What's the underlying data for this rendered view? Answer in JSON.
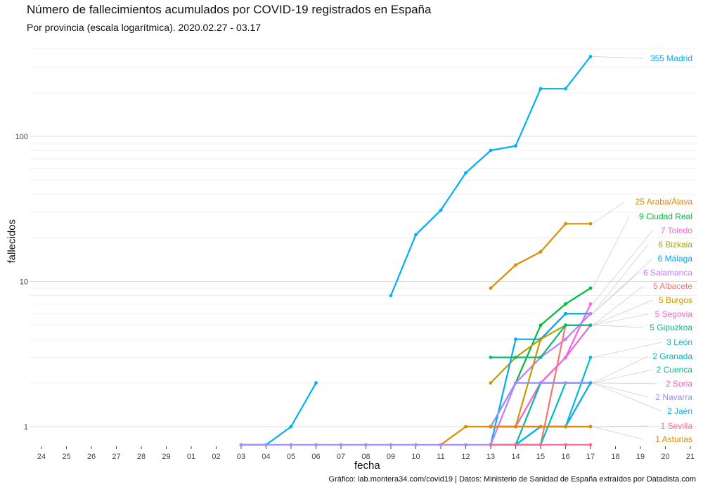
{
  "title": "Número de fallecimientos acumulados por COVID-19 registrados en España",
  "subtitle": "Por provincia (escala logarítmica). 2020.02.27 - 03.17",
  "caption": "Gráfico: lab.montera34.com/covid19 | Datos: Ministerio de Sanidad de España extraídos por Datadista.com",
  "chart_data": {
    "type": "line",
    "title": "Número de fallecimientos acumulados por COVID-19 registrados en España",
    "subtitle": "Por provincia (escala logarítmica). 2020.02.27 - 03.17",
    "xlabel": "fecha",
    "ylabel": "fallecidos",
    "y_scale": "log",
    "ylim": [
      0.75,
      420
    ],
    "y_ticks": [
      1,
      10,
      100
    ],
    "y_tick_labels": [
      "1",
      "10",
      "100"
    ],
    "x_ticks": [
      "24",
      "25",
      "26",
      "27",
      "28",
      "29",
      "01",
      "02",
      "03",
      "04",
      "05",
      "06",
      "07",
      "08",
      "09",
      "10",
      "11",
      "12",
      "13",
      "14",
      "15",
      "16",
      "17",
      "18",
      "19",
      "20",
      "21"
    ],
    "grid": true,
    "legend": "direct labels at right",
    "series": [
      {
        "name": "Madrid",
        "color": "#00b0f6",
        "label": "355 Madrid",
        "x": [
          "03",
          "04",
          "05",
          "06"
        ],
        "y": [
          0.75,
          0.75,
          1,
          2
        ],
        "x2": [
          "09",
          "10",
          "11",
          "12",
          "13",
          "14",
          "15",
          "16",
          "17"
        ],
        "y2": [
          8,
          21,
          31,
          56,
          80,
          86,
          213,
          213,
          355
        ]
      },
      {
        "name": "Araba/Álava",
        "color": "#e08b00",
        "label": "25 Araba/Álava",
        "x": [
          "13",
          "14",
          "15",
          "16",
          "17"
        ],
        "y": [
          9,
          13,
          16,
          25,
          25
        ]
      },
      {
        "name": "Ciudad Real",
        "color": "#00ba38",
        "label": "9 Ciudad Real",
        "x": [
          "13",
          "14",
          "15",
          "16",
          "17"
        ],
        "y": [
          1,
          2,
          5,
          7,
          9
        ]
      },
      {
        "name": "Toledo",
        "color": "#f564e3",
        "label": "7 Toledo",
        "x": [
          "13",
          "14",
          "15",
          "16",
          "17"
        ],
        "y": [
          1,
          1,
          2,
          3,
          7
        ]
      },
      {
        "name": "Bizkaia",
        "color": "#b79f00",
        "label": "6 Bizkaia",
        "x": [
          "13",
          "14",
          "15",
          "16",
          "17"
        ],
        "y": [
          2,
          3,
          4,
          6,
          6
        ]
      },
      {
        "name": "Málaga",
        "color": "#00a9ff",
        "label": "6 Málaga",
        "x": [
          "13",
          "14",
          "15",
          "16",
          "17"
        ],
        "y": [
          0.75,
          4,
          4,
          6,
          6
        ]
      },
      {
        "name": "Salamanca",
        "color": "#c77cff",
        "label": "6 Salamanca",
        "x": [
          "13",
          "14",
          "15",
          "16",
          "17"
        ],
        "y": [
          0.75,
          2,
          3,
          4,
          6
        ]
      },
      {
        "name": "Albacete",
        "color": "#f8766d",
        "label": "5 Albacete",
        "x": [
          "13",
          "14",
          "15",
          "16",
          "17"
        ],
        "y": [
          0.75,
          0.75,
          0.75,
          5,
          5
        ]
      },
      {
        "name": "Burgos",
        "color": "#c49a00",
        "label": "5 Burgos",
        "x": [
          "13",
          "14",
          "15",
          "16",
          "17"
        ],
        "y": [
          1,
          1,
          4,
          5,
          5
        ]
      },
      {
        "name": "Segovia",
        "color": "#fb61d7",
        "label": "5 Segovia",
        "x": [
          "13",
          "14",
          "15",
          "16",
          "17"
        ],
        "y": [
          1,
          1,
          2,
          3,
          5
        ]
      },
      {
        "name": "Gipuzkoa",
        "color": "#00bf7d",
        "label": "5 Gipuzkoa",
        "x": [
          "13",
          "14",
          "15",
          "16",
          "17"
        ],
        "y": [
          3,
          3,
          3,
          5,
          5
        ]
      },
      {
        "name": "León",
        "color": "#00bcd8",
        "label": "3 León",
        "x": [
          "13",
          "14",
          "15",
          "16",
          "17"
        ],
        "y": [
          0.75,
          0.75,
          1,
          1,
          3
        ]
      },
      {
        "name": "Granada",
        "color": "#00bfc4",
        "label": "2 Granada",
        "x": [
          "13",
          "14",
          "15",
          "16",
          "17"
        ],
        "y": [
          0.75,
          0.75,
          0.75,
          2,
          2
        ]
      },
      {
        "name": "Cuenca",
        "color": "#00c08b",
        "label": "2 Cuenca",
        "x": [
          "13",
          "14",
          "15",
          "16",
          "17"
        ],
        "y": [
          0.75,
          0.75,
          2,
          2,
          2
        ]
      },
      {
        "name": "Soria",
        "color": "#ff62bc",
        "label": "2 Soria",
        "x": [
          "13",
          "14",
          "15",
          "16",
          "17"
        ],
        "y": [
          1,
          1,
          1,
          1,
          2
        ]
      },
      {
        "name": "Navarra",
        "color": "#9590ff",
        "label": "2 Navarra",
        "x": [
          "13",
          "14",
          "15",
          "16",
          "17"
        ],
        "y": [
          1,
          2,
          2,
          2,
          2
        ]
      },
      {
        "name": "Jaén",
        "color": "#00b4f0",
        "label": "2 Jaén",
        "x": [
          "13",
          "14",
          "15",
          "16",
          "17"
        ],
        "y": [
          0.75,
          0.75,
          1,
          1,
          2
        ]
      },
      {
        "name": "Sevilla",
        "color": "#ff6c91",
        "label": "1 Sevilla",
        "x": [
          "13",
          "14",
          "15",
          "16",
          "17"
        ],
        "y": [
          1,
          1,
          1,
          1,
          1
        ]
      },
      {
        "name": "Asturias",
        "color": "#e38900",
        "label": "1 Asturias",
        "x": [
          "11",
          "12",
          "13",
          "14",
          "15",
          "16",
          "17"
        ],
        "y": [
          0.75,
          1,
          1,
          1,
          1,
          1,
          1
        ]
      },
      {
        "name": "",
        "color": "#a58aff",
        "x": [
          "03",
          "04",
          "05",
          "06",
          "07",
          "08",
          "09",
          "10",
          "11",
          "12",
          "13"
        ],
        "y": [
          0.75,
          0.75,
          0.75,
          0.75,
          0.75,
          0.75,
          0.75,
          0.75,
          0.75,
          0.75,
          0.75
        ]
      },
      {
        "name": "",
        "color": "#ff6699",
        "x": [
          "13",
          "14",
          "15",
          "16",
          "17"
        ],
        "y": [
          0.75,
          0.75,
          0.75,
          0.75,
          0.75
        ]
      }
    ]
  }
}
